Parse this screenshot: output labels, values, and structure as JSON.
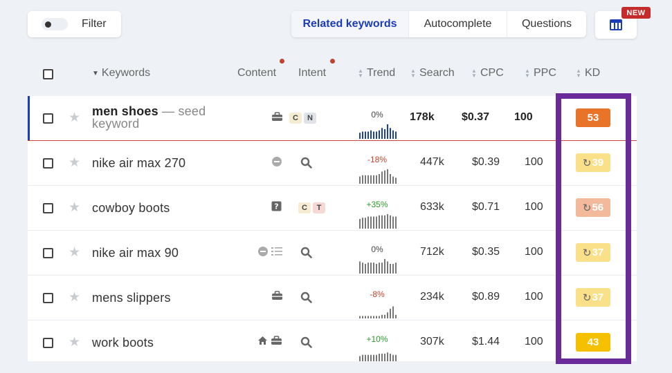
{
  "toolbar": {
    "filter_label": "Filter",
    "tabs": [
      {
        "label": "Related keywords",
        "active": true
      },
      {
        "label": "Autocomplete",
        "active": false
      },
      {
        "label": "Questions",
        "active": false
      }
    ],
    "columns_icon": "table-columns-icon",
    "new_badge": "NEW"
  },
  "table": {
    "headers": {
      "keywords": "Keywords",
      "content": "Content",
      "intent": "Intent",
      "trend": "Trend",
      "search": "Search",
      "cpc": "CPC",
      "ppc": "PPC",
      "kd": "KD"
    },
    "rows": [
      {
        "keyword": "men shoes",
        "seed_suffix": " — seed keyword",
        "content_icons": [
          "briefcase-icon"
        ],
        "intent_pills": [
          "C",
          "N"
        ],
        "trend_pct": "0%",
        "trend_color": "#444444",
        "trend_bars": [
          5,
          6,
          6,
          6,
          7,
          6,
          6,
          7,
          9,
          8,
          12,
          9,
          7,
          6
        ],
        "bar_color": "#1a3cb8",
        "search": "178k",
        "cpc": "$0.37",
        "ppc": "100",
        "kd": "53",
        "kd_color": "#e8742a",
        "kd_refresh": false
      },
      {
        "keyword": "nike air max 270",
        "content_icons": [
          "chat-bubble-icon"
        ],
        "intent_icon": "search-icon",
        "trend_pct": "-18%",
        "trend_color": "#c0432f",
        "trend_bars": [
          6,
          7,
          7,
          7,
          7,
          7,
          7,
          8,
          10,
          11,
          12,
          8,
          6,
          5
        ],
        "bar_color": "#777777",
        "search": "447k",
        "cpc": "$0.39",
        "ppc": "100",
        "kd": "39",
        "kd_color": "#fbe08a",
        "kd_refresh": true
      },
      {
        "keyword": "cowboy boots",
        "content_icons": [
          "question-box-icon"
        ],
        "intent_pills": [
          "C",
          "T"
        ],
        "trend_pct": "+35%",
        "trend_color": "#2a9a2a",
        "trend_bars": [
          8,
          9,
          9,
          10,
          10,
          10,
          10,
          11,
          11,
          11,
          12,
          11,
          10,
          10
        ],
        "bar_color": "#777777",
        "search": "633k",
        "cpc": "$0.71",
        "ppc": "100",
        "kd": "56",
        "kd_color": "#f2b99a",
        "kd_refresh": true
      },
      {
        "keyword": "nike air max 90",
        "content_icons": [
          "chat-bubble-icon",
          "list-icon"
        ],
        "intent_icon": "search-icon",
        "trend_pct": "0%",
        "trend_color": "#444444",
        "trend_bars": [
          10,
          9,
          8,
          9,
          9,
          9,
          8,
          9,
          9,
          12,
          10,
          8,
          8,
          9
        ],
        "bar_color": "#777777",
        "search": "712k",
        "cpc": "$0.35",
        "ppc": "100",
        "kd": "37",
        "kd_color": "#fbe08a",
        "kd_refresh": true
      },
      {
        "keyword": "mens slippers",
        "content_icons": [
          "briefcase-icon"
        ],
        "intent_icon": "search-icon",
        "trend_pct": "-8%",
        "trend_color": "#c0432f",
        "trend_bars": [
          2,
          2,
          2,
          2,
          2,
          2,
          2,
          2,
          3,
          3,
          5,
          8,
          10,
          3
        ],
        "bar_color": "#777777",
        "search": "234k",
        "cpc": "$0.89",
        "ppc": "100",
        "kd": "37",
        "kd_color": "#fbe08a",
        "kd_refresh": true
      },
      {
        "keyword": "work boots",
        "content_icons": [
          "home-icon",
          "briefcase-icon"
        ],
        "intent_icon": "search-icon",
        "trend_pct": "+10%",
        "trend_color": "#2a9a2a",
        "trend_bars": [
          6,
          7,
          7,
          7,
          7,
          7,
          7,
          8,
          8,
          8,
          9,
          8,
          7,
          7
        ],
        "bar_color": "#777777",
        "search": "307k",
        "cpc": "$1.44",
        "ppc": "100",
        "kd": "43",
        "kd_color": "#f5c000",
        "kd_refresh": false
      }
    ]
  }
}
